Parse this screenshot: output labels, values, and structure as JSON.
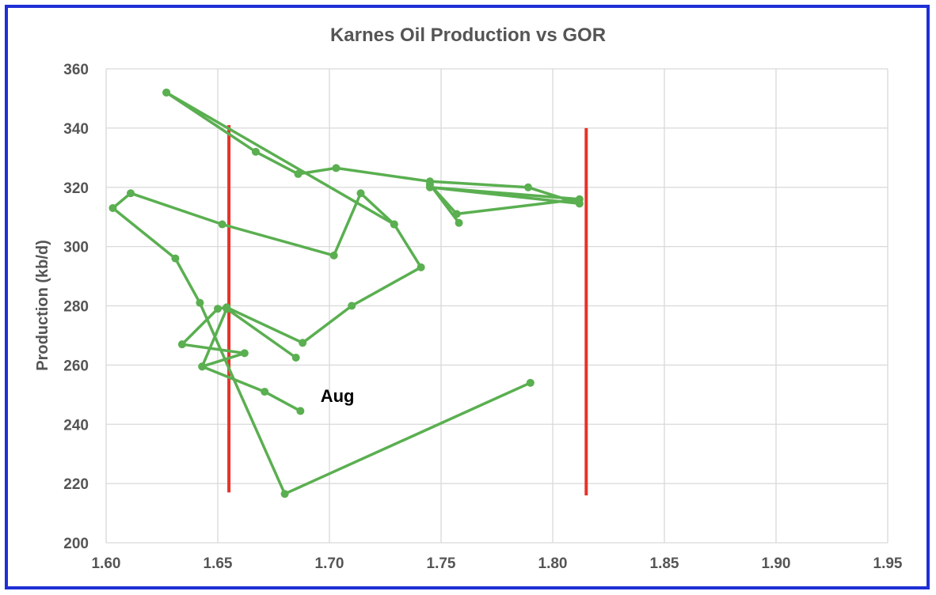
{
  "chart_data": {
    "type": "line",
    "title": "Karnes Oil Production vs GOR",
    "xlabel": "",
    "ylabel": "Production (kb/d)",
    "xlim": [
      1.6,
      1.95
    ],
    "ylim": [
      200,
      360
    ],
    "x_ticks": [
      "1.60",
      "1.65",
      "1.70",
      "1.75",
      "1.80",
      "1.85",
      "1.90",
      "1.95"
    ],
    "y_ticks": [
      "200",
      "220",
      "240",
      "260",
      "280",
      "300",
      "320",
      "340",
      "360"
    ],
    "grid": true,
    "series": [
      {
        "color": "#5aaf50",
        "points": [
          [
            1.79,
            254
          ],
          [
            1.68,
            216.5
          ],
          [
            1.642,
            281
          ],
          [
            1.631,
            296
          ],
          [
            1.603,
            313
          ],
          [
            1.611,
            318
          ],
          [
            1.652,
            307.5
          ],
          [
            1.702,
            297
          ],
          [
            1.714,
            318
          ],
          [
            1.729,
            307.5
          ],
          [
            1.741,
            293
          ],
          [
            1.71,
            280
          ],
          [
            1.688,
            267.5
          ],
          [
            1.654,
            279.5
          ],
          [
            1.65,
            279
          ],
          [
            1.634,
            267
          ],
          [
            1.662,
            264
          ],
          [
            1.643,
            259.5
          ],
          [
            1.654,
            279
          ],
          [
            1.685,
            262.5
          ]
        ]
      },
      {
        "color": "#5aaf50",
        "points": [
          [
            1.627,
            352
          ],
          [
            1.667,
            332
          ],
          [
            1.686,
            324.5
          ],
          [
            1.703,
            326.5
          ],
          [
            1.745,
            322
          ],
          [
            1.789,
            320
          ],
          [
            1.812,
            314.5
          ],
          [
            1.745,
            320
          ],
          [
            1.812,
            316
          ],
          [
            1.757,
            311
          ],
          [
            1.745,
            321
          ],
          [
            1.758,
            308
          ]
        ]
      },
      {
        "color": "#5aaf50",
        "points": [
          [
            1.627,
            352
          ],
          [
            1.729,
            307.5
          ]
        ]
      },
      {
        "color": "#5aaf50",
        "points": [
          [
            1.643,
            259.5
          ],
          [
            1.671,
            251
          ],
          [
            1.687,
            244.5
          ]
        ]
      }
    ],
    "reference_lines": [
      {
        "color": "#e5332a",
        "x": 1.655,
        "y_from": 217,
        "y_to": 341
      },
      {
        "color": "#e5332a",
        "x": 1.815,
        "y_from": 216,
        "y_to": 340
      }
    ],
    "annotations": [
      {
        "text": "Aug",
        "x": 1.696,
        "y": 247.5
      }
    ]
  }
}
